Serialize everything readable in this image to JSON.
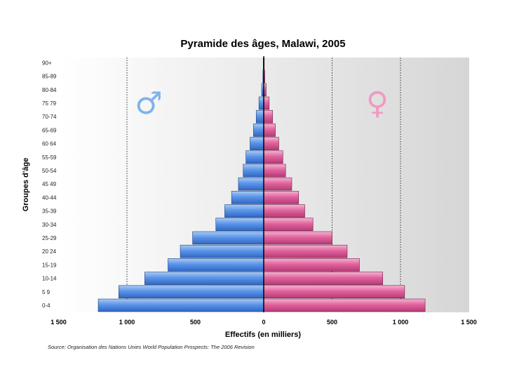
{
  "chart_data": {
    "type": "bar",
    "subtype": "population-pyramid",
    "title": "Pyramide des âges, Malawi, 2005",
    "xlabel": "Effectifs (en milliers)",
    "ylabel": "Groupes d'âge",
    "source": "Source: Organisation des Nations Unies World Population Prospects: The 2006 Revision",
    "xlim": [
      -1500,
      1500
    ],
    "x_ticks": [
      -1500,
      -1000,
      -500,
      0,
      500,
      1000,
      1500
    ],
    "x_tick_labels": [
      "1 500",
      "1 000",
      "500",
      "0",
      "500",
      "1 000",
      "1 500"
    ],
    "gridlines_at": [
      -1000,
      500,
      1000
    ],
    "grid": "dotted-vertical",
    "categories": [
      "0-4",
      "5-9",
      "10-14",
      "15-19",
      "20-24",
      "25-29",
      "30-34",
      "35-39",
      "40-44",
      "45-49",
      "50-54",
      "55-59",
      "60-64",
      "65-69",
      "70-74",
      "75-79",
      "80-84",
      "85-89",
      "90+"
    ],
    "category_labels": [
      "0-4",
      "5 9",
      "10-14",
      "15-19",
      "20 24",
      "25-29",
      "30-34",
      "35-39",
      "40-44",
      "45 49",
      "50-54",
      "55-59",
      "60 64",
      "65-69",
      "70-74",
      "75 79",
      "80-84",
      "85-89",
      "90+"
    ],
    "series": [
      {
        "name": "♂",
        "side": "left",
        "color": "#4a86e8",
        "values": [
          1210,
          1060,
          870,
          700,
          610,
          520,
          350,
          285,
          235,
          185,
          150,
          130,
          100,
          75,
          55,
          35,
          15,
          6,
          3
        ]
      },
      {
        "name": "♀",
        "side": "right",
        "color": "#e0609a",
        "values": [
          1180,
          1030,
          870,
          700,
          610,
          500,
          360,
          300,
          255,
          205,
          160,
          140,
          110,
          85,
          65,
          40,
          18,
          8,
          4
        ]
      }
    ],
    "symbols": {
      "male": "♂",
      "female": "♀",
      "male_color": "#7fb3ea",
      "female_color": "#f19ac2"
    }
  }
}
